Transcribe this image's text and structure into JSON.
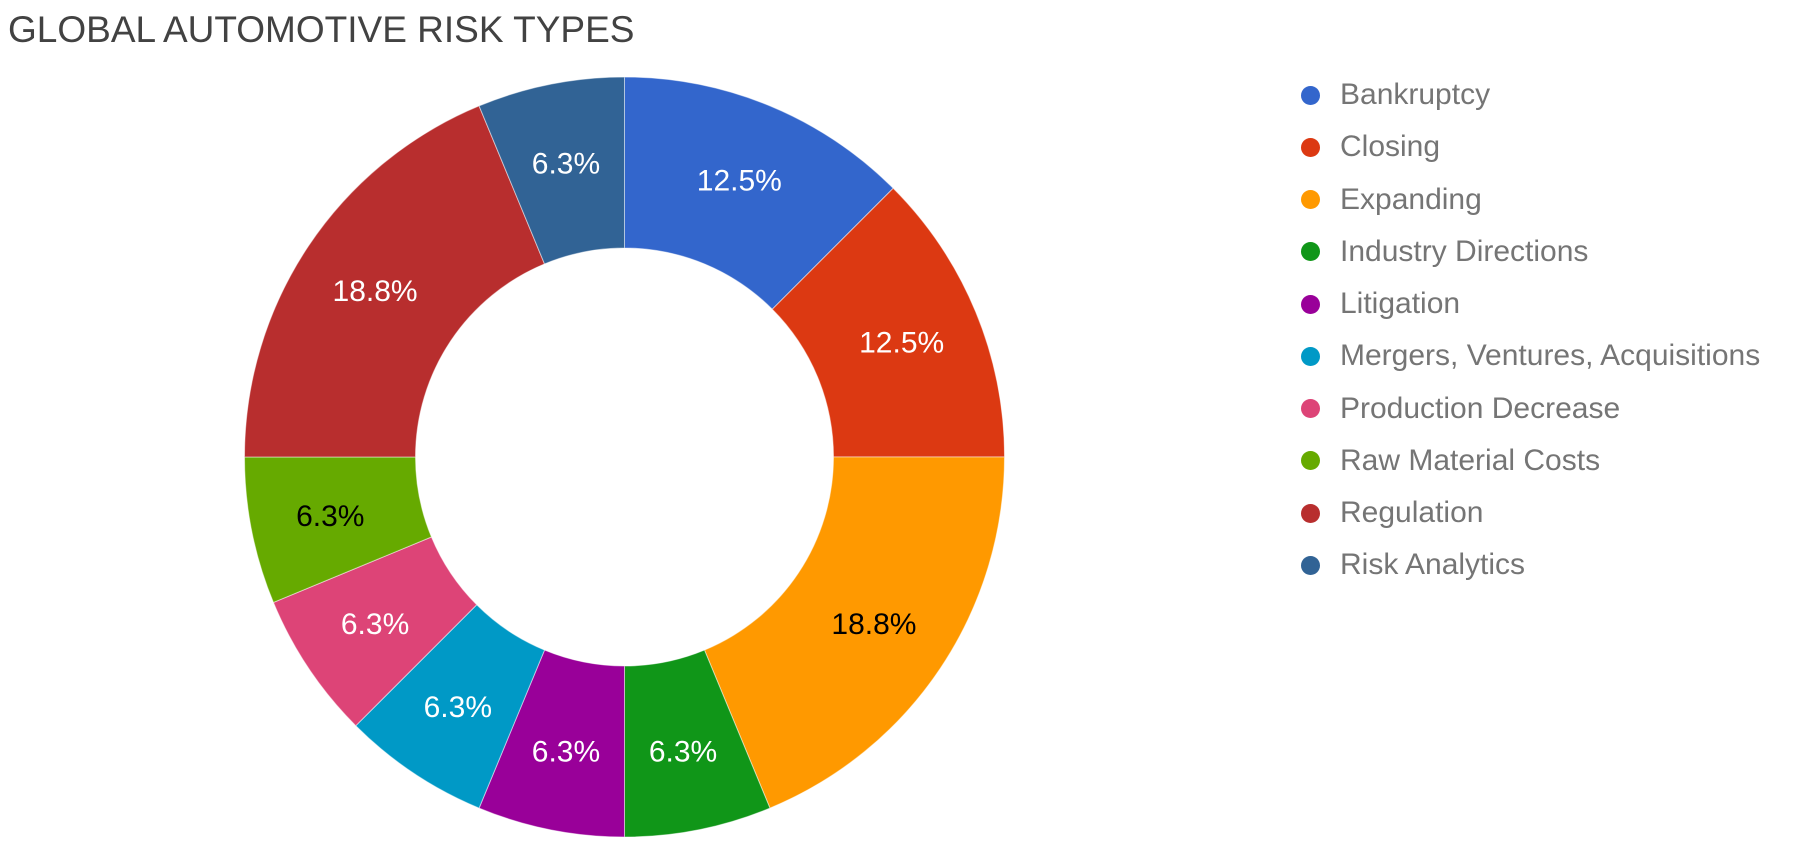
{
  "title": "GLOBAL AUTOMOTIVE RISK TYPES",
  "chart_data": {
    "type": "pie",
    "subtype": "donut",
    "title": "GLOBAL AUTOMOTIVE RISK TYPES",
    "legend_position": "right",
    "donut_hole_ratio": 0.55,
    "start_angle_deg": 0,
    "direction": "clockwise",
    "categories": [
      "Bankruptcy",
      "Closing",
      "Expanding",
      "Industry Directions",
      "Litigation",
      "Mergers, Ventures, Acquisitions",
      "Production Decrease",
      "Raw Material Costs",
      "Regulation",
      "Risk Analytics"
    ],
    "values": [
      12.5,
      12.5,
      18.75,
      6.25,
      6.25,
      6.25,
      6.25,
      6.25,
      18.75,
      6.25
    ],
    "slice_labels": [
      "12.5%",
      "12.5%",
      "18.8%",
      "6.3%",
      "6.3%",
      "6.3%",
      "6.3%",
      "6.3%",
      "18.8%",
      "6.3%"
    ],
    "colors": [
      "#3366cc",
      "#dc3912",
      "#ff9900",
      "#109618",
      "#990099",
      "#0099c6",
      "#dd4477",
      "#66aa00",
      "#b82e2e",
      "#316395"
    ],
    "slice_label_colors": [
      "#ffffff",
      "#ffffff",
      "#000000",
      "#ffffff",
      "#ffffff",
      "#ffffff",
      "#ffffff",
      "#000000",
      "#ffffff",
      "#ffffff"
    ]
  },
  "styles": {
    "background": "#ffffff",
    "title_color": "#424242",
    "legend_text_color": "#757575",
    "slice_border_color": "#ffffff"
  }
}
